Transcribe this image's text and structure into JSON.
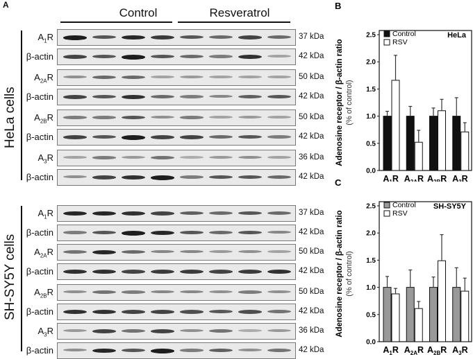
{
  "panelA": {
    "letter": "A",
    "groups": [
      "Control",
      "Resveratrol"
    ],
    "cells": [
      {
        "name": "HeLa cells",
        "rows": [
          {
            "label": "A",
            "sub": "1",
            "suf": "R",
            "kda": "37 kDa",
            "int": [
              0.9,
              0.6,
              0.85,
              0.75,
              0.6,
              0.5,
              0.7,
              0.5
            ]
          },
          {
            "label": "β-actin",
            "sub": "",
            "suf": "",
            "kda": "42 kDa",
            "int": [
              0.7,
              0.6,
              0.9,
              0.6,
              0.5,
              0.4,
              0.8,
              0.2
            ]
          },
          {
            "label": "A",
            "sub": "2A",
            "suf": "R",
            "kda": "50 kDa",
            "int": [
              0.3,
              0.5,
              0.5,
              0.2,
              0.25,
              0.2,
              0.2,
              0.2
            ]
          },
          {
            "label": "β-actin",
            "sub": "",
            "suf": "",
            "kda": "42 kDa",
            "int": [
              0.7,
              0.6,
              0.8,
              0.5,
              0.4,
              0.35,
              0.55,
              0.6
            ]
          },
          {
            "label": "A",
            "sub": "2B",
            "suf": "R",
            "kda": "50 kDa",
            "int": [
              0.4,
              0.4,
              0.6,
              0.3,
              0.4,
              0.2,
              0.25,
              0.2
            ]
          },
          {
            "label": "β-actin",
            "sub": "",
            "suf": "",
            "kda": "42 kDa",
            "int": [
              0.7,
              0.6,
              0.9,
              0.7,
              0.7,
              0.5,
              0.6,
              0.4
            ]
          },
          {
            "label": "A",
            "sub": "3",
            "suf": "R",
            "kda": "36 kDa",
            "int": [
              0.2,
              0.4,
              0.25,
              0.45,
              0.15,
              0.25,
              0.3,
              0.2
            ]
          },
          {
            "label": "β-actin",
            "sub": "",
            "suf": "",
            "kda": "42 kDa",
            "int": [
              0.3,
              0.7,
              0.8,
              0.9,
              0.4,
              0.6,
              0.6,
              0.5
            ]
          }
        ]
      },
      {
        "name": "SH-SY5Y cells",
        "rows": [
          {
            "label": "A",
            "sub": "1",
            "suf": "R",
            "kda": "37 kDa",
            "int": [
              0.85,
              0.85,
              0.8,
              0.7,
              0.55,
              0.5,
              0.6,
              0.5
            ]
          },
          {
            "label": "β-actin",
            "sub": "",
            "suf": "",
            "kda": "42 kDa",
            "int": [
              0.4,
              0.6,
              0.9,
              0.85,
              0.6,
              0.5,
              0.6,
              0.35
            ]
          },
          {
            "label": "A",
            "sub": "2A",
            "suf": "R",
            "kda": "50 kDa",
            "int": [
              0.45,
              0.85,
              0.5,
              0.35,
              0.35,
              0.25,
              0.3,
              0.2
            ]
          },
          {
            "label": "β-actin",
            "sub": "",
            "suf": "",
            "kda": "42 kDa",
            "int": [
              0.8,
              0.8,
              0.7,
              0.75,
              0.75,
              0.7,
              0.75,
              0.8
            ]
          },
          {
            "label": "A",
            "sub": "2B",
            "suf": "R",
            "kda": "50 kDa",
            "int": [
              0.3,
              0.45,
              0.4,
              0.35,
              0.35,
              0.3,
              0.4,
              0.3
            ]
          },
          {
            "label": "β-actin",
            "sub": "",
            "suf": "",
            "kda": "42 kDa",
            "int": [
              0.8,
              0.8,
              0.7,
              0.7,
              0.65,
              0.6,
              0.65,
              0.45
            ]
          },
          {
            "label": "A",
            "sub": "3",
            "suf": "R",
            "kda": "36 kDa",
            "int": [
              0.25,
              0.7,
              0.45,
              0.7,
              0.3,
              0.45,
              0.15,
              0.25
            ]
          },
          {
            "label": "β-actin",
            "sub": "",
            "suf": "",
            "kda": "42 kDa",
            "int": [
              0.3,
              0.85,
              0.6,
              0.9,
              0.4,
              0.55,
              0.3,
              0.45
            ]
          }
        ]
      }
    ]
  },
  "chart_data": [
    {
      "panel": "B",
      "type": "bar",
      "title": "HeLa",
      "categories": [
        "A1R",
        "A2AR",
        "A2BR",
        "A3R"
      ],
      "category_labels": [
        {
          "main": "A",
          "sub": "1",
          "suf": "R"
        },
        {
          "main": "A",
          "sub": "2A",
          "suf": "R"
        },
        {
          "main": "A",
          "sub": "2B",
          "suf": "R"
        },
        {
          "main": "A",
          "sub": "3",
          "suf": "R"
        }
      ],
      "series": [
        {
          "name": "Control",
          "color": "#111111",
          "values": [
            1.0,
            1.0,
            1.0,
            1.0
          ],
          "errors": [
            0.09,
            0.18,
            0.15,
            0.34
          ]
        },
        {
          "name": "RSV",
          "color": "#ffffff",
          "values": [
            1.66,
            0.52,
            1.1,
            0.71
          ],
          "errors": [
            0.46,
            0.22,
            0.21,
            0.17
          ]
        }
      ],
      "xlabel": "",
      "ylabel": "Adenosine receptor / β-actin ratio",
      "ylabel2": "(% of control)",
      "ylim": [
        0,
        2.5
      ],
      "yticks": [
        "0.0",
        "0.5",
        "1.0",
        "1.5",
        "2.0",
        "2.5"
      ],
      "legend_position": "top-left",
      "grid": false
    },
    {
      "panel": "C",
      "type": "bar",
      "title": "SH-SY5Y",
      "categories": [
        "A1R",
        "A2AR",
        "A2BR",
        "A3R"
      ],
      "category_labels": [
        {
          "main": "A",
          "sub": "1",
          "suf": "R"
        },
        {
          "main": "A",
          "sub": "2A",
          "suf": "R"
        },
        {
          "main": "A",
          "sub": "2B",
          "suf": "R"
        },
        {
          "main": "A",
          "sub": "3",
          "suf": "R"
        }
      ],
      "series": [
        {
          "name": "Control",
          "color": "#999999",
          "values": [
            1.0,
            1.0,
            1.0,
            1.0
          ],
          "errors": [
            0.2,
            0.32,
            0.19,
            0.36
          ]
        },
        {
          "name": "RSV",
          "color": "#ffffff",
          "values": [
            0.88,
            0.61,
            1.49,
            0.93
          ],
          "errors": [
            0.1,
            0.13,
            0.48,
            0.24
          ]
        }
      ],
      "xlabel": "",
      "ylabel": "Adenosine receptor / β-actin ratio",
      "ylabel2": "(% of control)",
      "ylim": [
        0,
        2.5
      ],
      "yticks": [
        "0.0",
        "0.5",
        "1.0",
        "1.5",
        "2.0",
        "2.5"
      ],
      "legend_position": "top-left",
      "grid": false
    }
  ]
}
